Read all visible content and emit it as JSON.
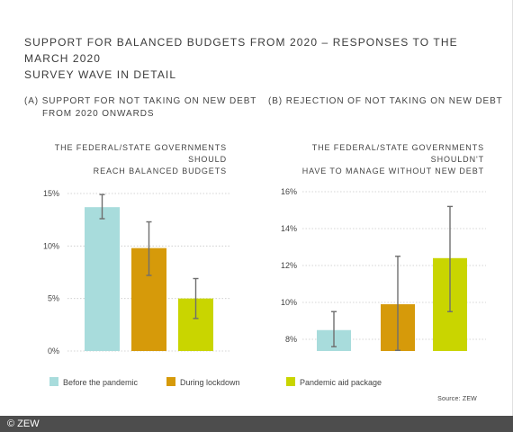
{
  "title_line1": "SUPPORT FOR BALANCED BUDGETS FROM 2020 – RESPONSES TO THE MARCH 2020",
  "title_line2": "SURVEY WAVE IN DETAIL",
  "panel_a": {
    "label_line1": "(A) SUPPORT FOR NOT TAKING ON NEW DEBT",
    "label_line2": "FROM 2020 ONWARDS",
    "sub_line1": "THE FEDERAL/STATE GOVERNMENTS SHOULD",
    "sub_line2": "REACH BALANCED BUDGETS"
  },
  "panel_b": {
    "label_line1": "(B) REJECTION OF NOT TAKING ON NEW DEBT",
    "sub_line1": "THE FEDERAL/STATE GOVERNMENTS SHOULDN'T",
    "sub_line2": "HAVE TO MANAGE WITHOUT NEW DEBT"
  },
  "legend": [
    "Before the pandemic",
    "During lockdown",
    "Pandemic aid package"
  ],
  "colors": [
    "#a8dcdc",
    "#d69a0a",
    "#c9d500"
  ],
  "source": "Source: ZEW",
  "footer": "© ZEW",
  "chart_data": [
    {
      "type": "bar",
      "categories": [
        "Before the pandemic",
        "During lockdown",
        "Pandemic aid package"
      ],
      "values": [
        13.7,
        9.8,
        5.0
      ],
      "error_low": [
        12.6,
        7.2,
        3.1
      ],
      "error_high": [
        14.9,
        12.3,
        6.9
      ],
      "ylim": [
        0,
        15
      ],
      "yticks": [
        0,
        5,
        10,
        15
      ],
      "ytick_labels": [
        "0%",
        "5%",
        "10%",
        "15%"
      ]
    },
    {
      "type": "bar",
      "categories": [
        "Before the pandemic",
        "During lockdown",
        "Pandemic aid package"
      ],
      "values": [
        8.5,
        9.9,
        12.4
      ],
      "error_low": [
        7.6,
        7.4,
        9.5
      ],
      "error_high": [
        9.5,
        12.5,
        15.2
      ],
      "ylim": [
        7.4,
        16
      ],
      "yticks": [
        8,
        10,
        12,
        14,
        16
      ],
      "ytick_labels": [
        "8%",
        "10%",
        "12%",
        "14%",
        "16%"
      ]
    }
  ]
}
